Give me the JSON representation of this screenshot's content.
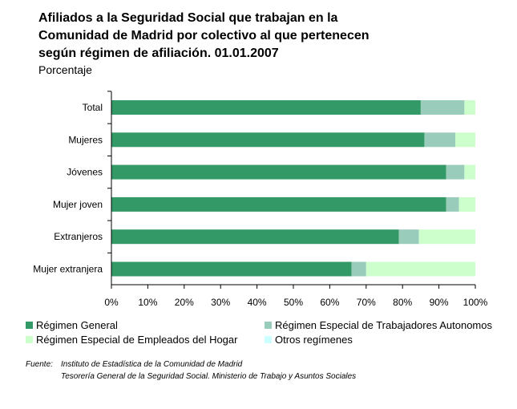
{
  "chart_data": {
    "type": "bar",
    "orientation": "horizontal",
    "stacked": true,
    "title_lines": [
      "Afiliados a la Seguridad Social que trabajan en la",
      "Comunidad de Madrid por colectivo al que pertenecen",
      "según régimen de afiliación. 01.01.2007"
    ],
    "subtitle": "Porcentaje",
    "categories": [
      "Total",
      "Mujeres",
      "Jóvenes",
      "Mujer joven",
      "Extranjeros",
      "Mujer extranjera"
    ],
    "series": [
      {
        "name": "Régimen General",
        "color": "#339966",
        "values": [
          85,
          86,
          92,
          92,
          79,
          66
        ]
      },
      {
        "name": "Régimen Especial de Trabajadores Autonomos",
        "color": "#99ccbb",
        "values": [
          12,
          8.5,
          5,
          3.5,
          5.5,
          4
        ]
      },
      {
        "name": "Régimen Especial de Empleados del Hogar",
        "color": "#ccffcc",
        "values": [
          3,
          5.5,
          3,
          4.5,
          15.5,
          30
        ]
      },
      {
        "name": "Otros regímenes",
        "color": "#ccffff",
        "values": [
          0,
          0,
          0,
          0,
          0,
          0
        ]
      }
    ],
    "x_ticks": [
      "0%",
      "10%",
      "20%",
      "30%",
      "40%",
      "50%",
      "60%",
      "70%",
      "80%",
      "90%",
      "100%"
    ],
    "xlim": [
      0,
      100
    ],
    "grid": false,
    "legend_position": "bottom"
  },
  "source": {
    "label": "Fuente:",
    "line1": "Instituto de Estadística de la Comunidad de Madrid",
    "line2": "Tesorería General de la Seguridad Social. Ministerio de Trabajo y Asuntos Sociales"
  }
}
